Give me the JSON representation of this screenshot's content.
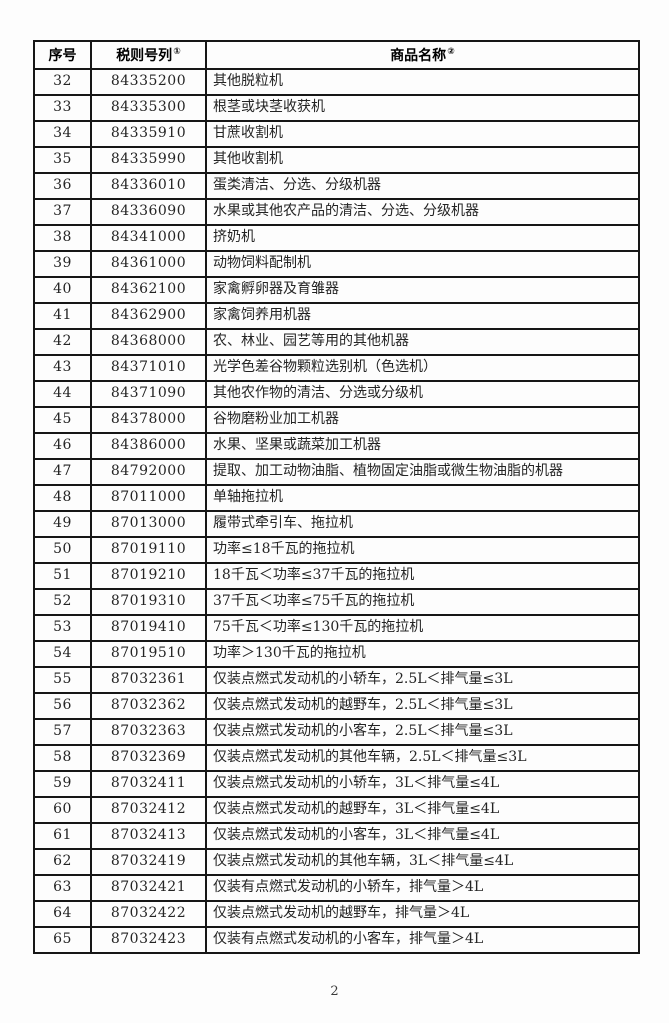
{
  "table": {
    "headers": {
      "index_label": "序号",
      "code_label": "税则号列",
      "code_footnote": "①",
      "name_label": "商品名称",
      "name_footnote": "②"
    },
    "rows": [
      {
        "no": "32",
        "code": "84335200",
        "name": "其他脱粒机"
      },
      {
        "no": "33",
        "code": "84335300",
        "name": "根茎或块茎收获机"
      },
      {
        "no": "34",
        "code": "84335910",
        "name": "甘蔗收割机"
      },
      {
        "no": "35",
        "code": "84335990",
        "name": "其他收割机"
      },
      {
        "no": "36",
        "code": "84336010",
        "name": "蛋类清洁、分选、分级机器"
      },
      {
        "no": "37",
        "code": "84336090",
        "name": "水果或其他农产品的清洁、分选、分级机器"
      },
      {
        "no": "38",
        "code": "84341000",
        "name": "挤奶机"
      },
      {
        "no": "39",
        "code": "84361000",
        "name": "动物饲料配制机"
      },
      {
        "no": "40",
        "code": "84362100",
        "name": "家禽孵卵器及育雏器"
      },
      {
        "no": "41",
        "code": "84362900",
        "name": "家禽饲养用机器"
      },
      {
        "no": "42",
        "code": "84368000",
        "name": "农、林业、园艺等用的其他机器"
      },
      {
        "no": "43",
        "code": "84371010",
        "name": "光学色差谷物颗粒选别机（色选机）"
      },
      {
        "no": "44",
        "code": "84371090",
        "name": "其他农作物的清洁、分选或分级机"
      },
      {
        "no": "45",
        "code": "84378000",
        "name": "谷物磨粉业加工机器"
      },
      {
        "no": "46",
        "code": "84386000",
        "name": "水果、坚果或蔬菜加工机器"
      },
      {
        "no": "47",
        "code": "84792000",
        "name": "提取、加工动物油脂、植物固定油脂或微生物油脂的机器"
      },
      {
        "no": "48",
        "code": "87011000",
        "name": "单轴拖拉机"
      },
      {
        "no": "49",
        "code": "87013000",
        "name": "履带式牵引车、拖拉机"
      },
      {
        "no": "50",
        "code": "87019110",
        "name": "功率≤18千瓦的拖拉机"
      },
      {
        "no": "51",
        "code": "87019210",
        "name": "18千瓦＜功率≤37千瓦的拖拉机"
      },
      {
        "no": "52",
        "code": "87019310",
        "name": "37千瓦＜功率≤75千瓦的拖拉机"
      },
      {
        "no": "53",
        "code": "87019410",
        "name": "75千瓦＜功率≤130千瓦的拖拉机"
      },
      {
        "no": "54",
        "code": "87019510",
        "name": "功率＞130千瓦的拖拉机"
      },
      {
        "no": "55",
        "code": "87032361",
        "name": "仅装点燃式发动机的小轿车，2.5L＜排气量≤3L"
      },
      {
        "no": "56",
        "code": "87032362",
        "name": "仅装点燃式发动机的越野车，2.5L＜排气量≤3L"
      },
      {
        "no": "57",
        "code": "87032363",
        "name": "仅装点燃式发动机的小客车，2.5L＜排气量≤3L"
      },
      {
        "no": "58",
        "code": "87032369",
        "name": "仅装点燃式发动机的其他车辆，2.5L＜排气量≤3L"
      },
      {
        "no": "59",
        "code": "87032411",
        "name": "仅装点燃式发动机的小轿车，3L＜排气量≤4L"
      },
      {
        "no": "60",
        "code": "87032412",
        "name": "仅装点燃式发动机的越野车，3L＜排气量≤4L"
      },
      {
        "no": "61",
        "code": "87032413",
        "name": "仅装点燃式发动机的小客车，3L＜排气量≤4L"
      },
      {
        "no": "62",
        "code": "87032419",
        "name": "仅装点燃式发动机的其他车辆，3L＜排气量≤4L"
      },
      {
        "no": "63",
        "code": "87032421",
        "name": "仅装有点燃式发动机的小轿车，排气量＞4L"
      },
      {
        "no": "64",
        "code": "87032422",
        "name": "仅装点燃式发动机的越野车，排气量＞4L"
      },
      {
        "no": "65",
        "code": "87032423",
        "name": "仅装有点燃式发动机的小客车，排气量＞4L"
      }
    ]
  },
  "page": {
    "number": "2"
  },
  "colors": {
    "border": "#161616",
    "text": "#242424",
    "background": "#fdfdfd"
  }
}
